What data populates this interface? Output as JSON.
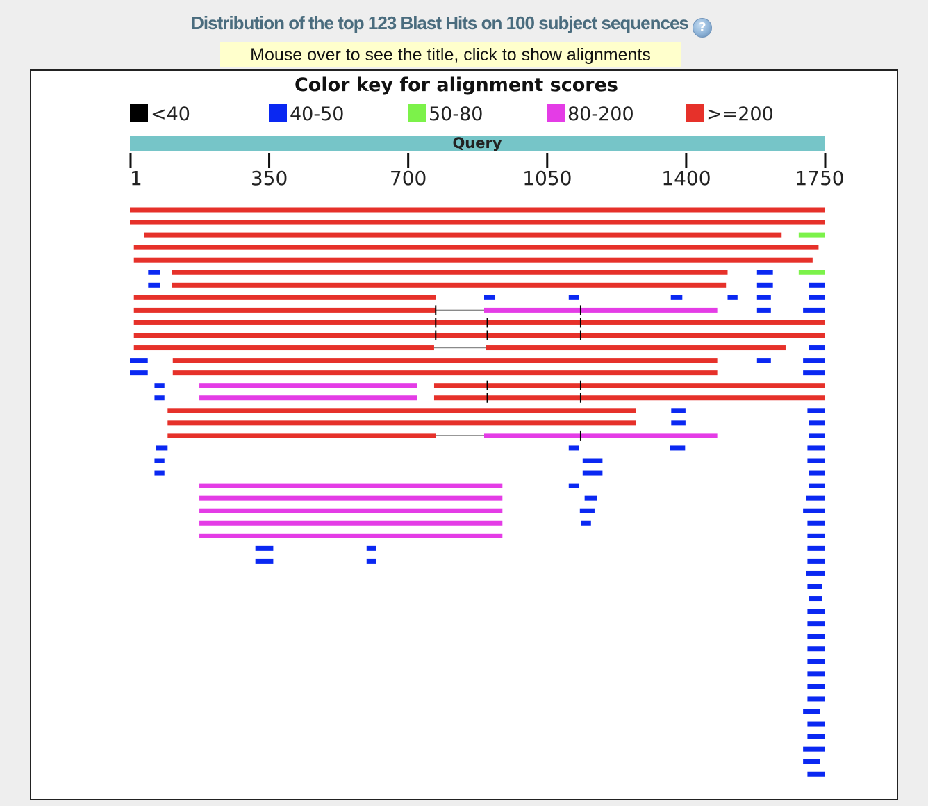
{
  "page": {
    "title": "Distribution of the top 123 Blast Hits on 100 subject sequences",
    "help_icon": "?",
    "hint": "Mouse over to see the title, click to show alignments"
  },
  "chart_data": {
    "type": "alignment-graphic",
    "key_title": "Color key for alignment scores",
    "legend": [
      {
        "label": "<40",
        "color": "#000000"
      },
      {
        "label": "40-50",
        "color": "#0a28f2"
      },
      {
        "label": "50-80",
        "color": "#7cf24a"
      },
      {
        "label": "80-200",
        "color": "#e43ce6"
      },
      {
        "label": ">=200",
        "color": "#e6312a"
      }
    ],
    "query_label": "Query",
    "query_color": "#76c5c8",
    "x_range": [
      1,
      1750
    ],
    "x_ticks": [
      1,
      350,
      700,
      1050,
      1400,
      1750
    ],
    "rows": [
      [
        [
          1,
          1750,
          4
        ]
      ],
      [
        [
          1,
          1750,
          4
        ]
      ],
      [
        [
          36,
          1642,
          4
        ],
        [
          1685,
          1750,
          2
        ]
      ],
      [
        [
          11,
          1735,
          4
        ]
      ],
      [
        [
          11,
          1720,
          4
        ]
      ],
      [
        [
          47,
          77,
          1
        ],
        [
          106,
          1506,
          4
        ],
        [
          1580,
          1620,
          1
        ],
        [
          1685,
          1750,
          2
        ]
      ],
      [
        [
          47,
          77,
          1
        ],
        [
          106,
          1502,
          4
        ],
        [
          1580,
          1620,
          1
        ],
        [
          1711,
          1750,
          1
        ]
      ],
      [
        [
          11,
          771,
          4
        ],
        [
          893,
          921,
          1
        ],
        [
          1106,
          1131,
          1
        ],
        [
          1363,
          1392,
          1
        ],
        [
          1506,
          1531,
          1
        ],
        [
          1580,
          1615,
          1
        ],
        [
          1711,
          1750,
          1
        ]
      ],
      [
        [
          11,
          771,
          4,
          893,
          1480,
          3
        ],
        [
          1580,
          1615,
          1
        ],
        [
          1696,
          1750,
          1
        ]
      ],
      [
        [
          11,
          1750,
          4
        ]
      ],
      [
        [
          11,
          1750,
          4
        ]
      ],
      [
        [
          11,
          767,
          4,
          897,
          1652,
          4
        ],
        [
          1711,
          1750,
          1
        ]
      ],
      [
        [
          1,
          46,
          1
        ],
        [
          109,
          1480,
          4
        ],
        [
          1580,
          1615,
          1
        ],
        [
          1696,
          1750,
          1
        ]
      ],
      [
        [
          1,
          46,
          1
        ],
        [
          109,
          1480,
          4
        ],
        [
          1696,
          1750,
          1
        ]
      ],
      [
        [
          63,
          88,
          1
        ],
        [
          176,
          725,
          3
        ],
        [
          767,
          1750,
          4
        ]
      ],
      [
        [
          63,
          88,
          1
        ],
        [
          176,
          725,
          3
        ],
        [
          767,
          1750,
          4
        ]
      ],
      [
        [
          96,
          1276,
          4
        ],
        [
          1364,
          1400,
          1
        ],
        [
          1707,
          1750,
          1
        ]
      ],
      [
        [
          96,
          1276,
          4
        ],
        [
          1364,
          1400,
          1
        ],
        [
          1711,
          1750,
          1
        ]
      ],
      [
        [
          96,
          771,
          4,
          893,
          1480,
          3
        ],
        [
          1711,
          1750,
          1
        ]
      ],
      [
        [
          66,
          96,
          1
        ],
        [
          1106,
          1131,
          1
        ],
        [
          1360,
          1399,
          1
        ],
        [
          1707,
          1750,
          1
        ]
      ],
      [
        [
          63,
          88,
          1
        ],
        [
          1141,
          1191,
          1
        ],
        [
          1707,
          1750,
          1
        ]
      ],
      [
        [
          63,
          88,
          1
        ],
        [
          1141,
          1191,
          1
        ],
        [
          1711,
          1750,
          1
        ]
      ],
      [
        [
          176,
          939,
          3
        ],
        [
          1106,
          1131,
          1
        ],
        [
          1711,
          1750,
          1
        ]
      ],
      [
        [
          176,
          939,
          3
        ],
        [
          1146,
          1178,
          1
        ],
        [
          1703,
          1750,
          1
        ]
      ],
      [
        [
          176,
          939,
          3
        ],
        [
          1134,
          1171,
          1
        ],
        [
          1696,
          1750,
          1
        ]
      ],
      [
        [
          176,
          939,
          3
        ],
        [
          1137,
          1162,
          1
        ],
        [
          1707,
          1750,
          1
        ]
      ],
      [
        [
          176,
          939,
          3
        ],
        [
          1707,
          1750,
          1
        ]
      ],
      [
        [
          317,
          362,
          1
        ],
        [
          597,
          621,
          1
        ],
        [
          1707,
          1750,
          1
        ]
      ],
      [
        [
          317,
          362,
          1
        ],
        [
          597,
          621,
          1
        ],
        [
          1707,
          1750,
          1
        ]
      ],
      [
        [
          1703,
          1750,
          1
        ]
      ],
      [
        [
          1707,
          1744,
          1
        ]
      ],
      [
        [
          1711,
          1744,
          1
        ]
      ],
      [
        [
          1707,
          1750,
          1
        ]
      ],
      [
        [
          1707,
          1750,
          1
        ]
      ],
      [
        [
          1707,
          1750,
          1
        ]
      ],
      [
        [
          1707,
          1750,
          1
        ]
      ],
      [
        [
          1707,
          1750,
          1
        ]
      ],
      [
        [
          1707,
          1750,
          1
        ]
      ],
      [
        [
          1707,
          1750,
          1
        ]
      ],
      [
        [
          1707,
          1750,
          1
        ]
      ],
      [
        [
          1696,
          1738,
          1
        ]
      ],
      [
        [
          1707,
          1750,
          1
        ]
      ],
      [
        [
          1707,
          1750,
          1
        ]
      ],
      [
        [
          1696,
          1750,
          1
        ]
      ],
      [
        [
          1696,
          1738,
          1
        ]
      ],
      [
        [
          1707,
          1750,
          1
        ]
      ]
    ],
    "separators": [
      [
        8,
        771
      ],
      [
        8,
        1136
      ],
      [
        9,
        771
      ],
      [
        9,
        901
      ],
      [
        9,
        1136
      ],
      [
        10,
        771
      ],
      [
        10,
        901
      ],
      [
        10,
        1136
      ],
      [
        14,
        901
      ],
      [
        14,
        1136
      ],
      [
        15,
        901
      ],
      [
        15,
        1136
      ],
      [
        18,
        1136
      ]
    ]
  }
}
